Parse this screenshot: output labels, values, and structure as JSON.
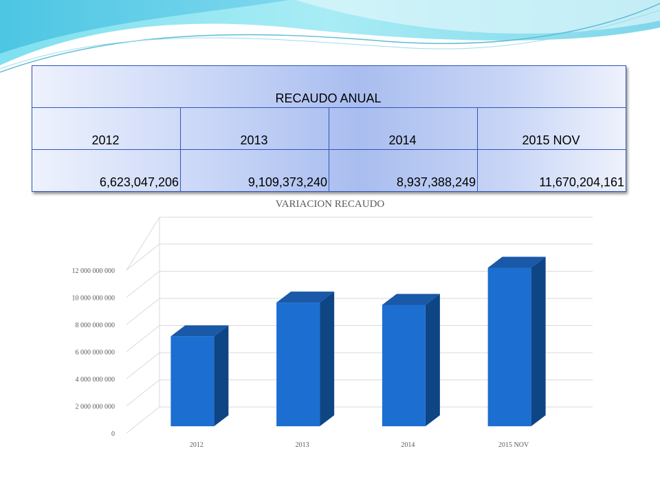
{
  "table": {
    "title": "RECAUDO ANUAL",
    "headers": [
      "2012",
      "2013",
      "2014",
      "2015 NOV"
    ],
    "values": [
      "6,623,047,206",
      "9,109,373,240",
      "8,937,388,249",
      "11,670,204,161"
    ]
  },
  "chart_data": {
    "type": "bar",
    "title": "VARIACION RECAUDO",
    "categories": [
      "2012",
      "2013",
      "2014",
      "2015 NOV"
    ],
    "values": [
      6623047206,
      9109373240,
      8937388249,
      11670204161
    ],
    "ylim": [
      0,
      12000000000
    ],
    "yticks": [
      "0",
      "2 000 000 000",
      "4 000 000 000",
      "6 000 000 000",
      "8 000 000 000",
      "10 000 000 000",
      "12 000 000 000"
    ],
    "xlabel": "",
    "ylabel": "",
    "grid": true,
    "style": "3d-column",
    "colors": {
      "bar_front": "#1c6fd0",
      "bar_side": "#0e4585",
      "bar_top": "#1a58a8",
      "grid": "#d9d9d9",
      "label": "#595959"
    }
  }
}
